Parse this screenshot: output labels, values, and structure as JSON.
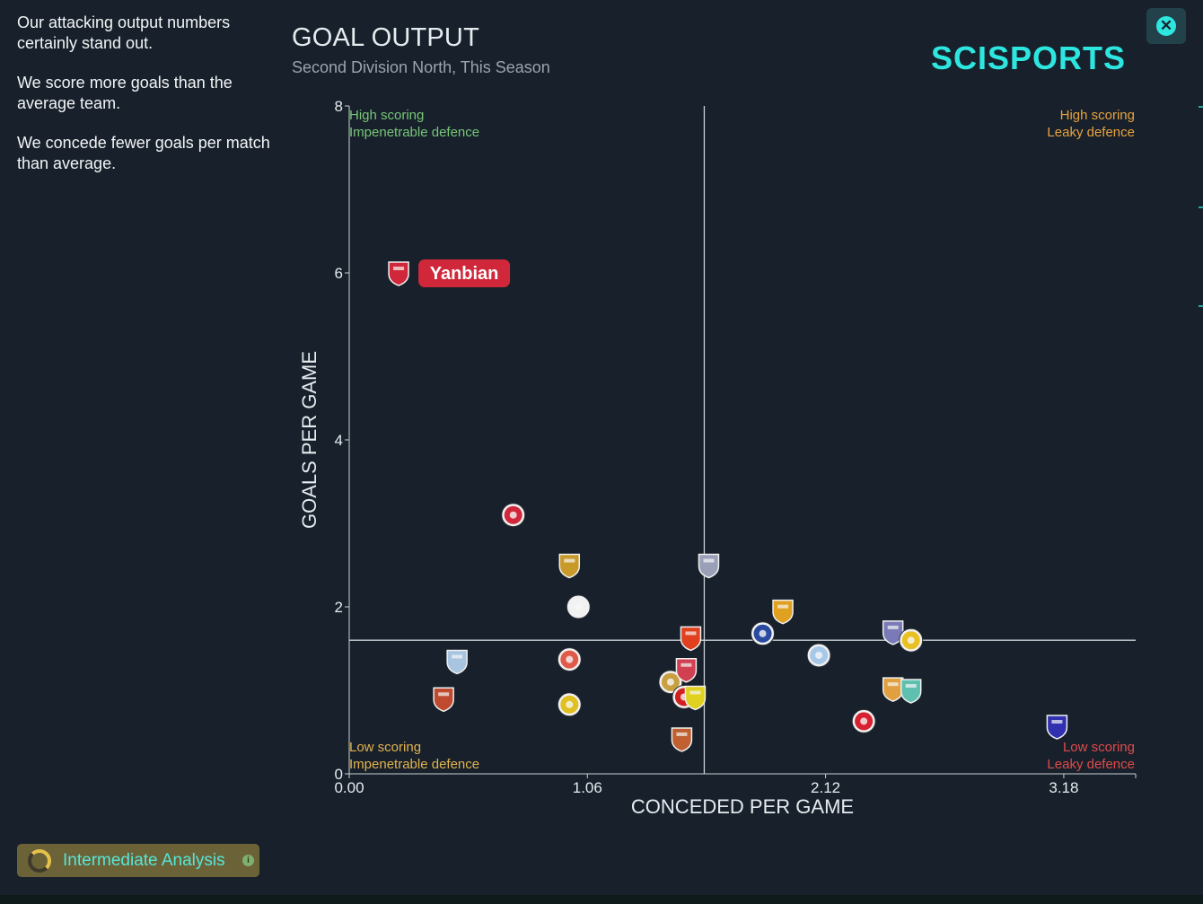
{
  "sidebar": {
    "paragraphs": [
      "Our attacking output numbers certainly stand out.",
      "We score more goals than the average team.",
      "We concede fewer goals per match than average."
    ]
  },
  "header": {
    "title": "GOAL OUTPUT",
    "subtitle": "Second Division North, This Season",
    "logo_text": "SCISPORTS",
    "close_icon": "close-icon"
  },
  "footer": {
    "analysis_label": "Intermediate Analysis",
    "analysis_icon": "progress-ring-icon",
    "info_icon": "info-icon"
  },
  "colors": {
    "background": "#18212b",
    "accent": "#2ee6e0",
    "quadrant_top_left": "#78c678",
    "quadrant_top_right": "#e8a23e",
    "quadrant_bottom_left": "#e2b24e",
    "quadrant_bottom_right": "#e04a4a",
    "highlight": "#d0283a"
  },
  "chart_data": {
    "type": "scatter",
    "xlabel": "CONCEDED PER GAME",
    "ylabel": "GOALS PER GAME",
    "xlim": [
      0,
      3.5
    ],
    "ylim": [
      0,
      8
    ],
    "x_ticks": [
      "0.00",
      "1.06",
      "2.12",
      "3.18"
    ],
    "y_ticks": [
      "0",
      "2",
      "4",
      "6",
      "8"
    ],
    "average": {
      "x": 1.58,
      "y": 1.6
    },
    "quadrants": {
      "top_left": [
        "High scoring",
        "Impenetrable defence"
      ],
      "top_right": [
        "High scoring",
        "Leaky defence"
      ],
      "bottom_left": [
        "Low scoring",
        "Impenetrable defence"
      ],
      "bottom_right": [
        "Low scoring",
        "Leaky defence"
      ]
    },
    "highlight_label": "Yanbian",
    "points": [
      {
        "x": 0.22,
        "y": 6.0,
        "color": "#d0283a",
        "shape": "shield",
        "highlight": true
      },
      {
        "x": 0.73,
        "y": 3.1,
        "color": "#d0283a",
        "shape": "circle"
      },
      {
        "x": 0.98,
        "y": 2.5,
        "color": "#c89a2a",
        "shape": "shield"
      },
      {
        "x": 1.02,
        "y": 2.0,
        "color": "#f2f2f2",
        "shape": "circle"
      },
      {
        "x": 1.6,
        "y": 2.5,
        "color": "#9aa0b8",
        "shape": "shield"
      },
      {
        "x": 1.93,
        "y": 1.95,
        "color": "#e0a020",
        "shape": "shield"
      },
      {
        "x": 0.48,
        "y": 1.35,
        "color": "#a8c4e0",
        "shape": "shield"
      },
      {
        "x": 0.98,
        "y": 1.37,
        "color": "#e05a4a",
        "shape": "circle"
      },
      {
        "x": 0.98,
        "y": 0.83,
        "color": "#e0c020",
        "shape": "circle"
      },
      {
        "x": 0.42,
        "y": 0.9,
        "color": "#c04a30",
        "shape": "shield"
      },
      {
        "x": 1.52,
        "y": 1.63,
        "color": "#e04020",
        "shape": "shield"
      },
      {
        "x": 1.84,
        "y": 1.68,
        "color": "#2a4aa0",
        "shape": "circle"
      },
      {
        "x": 2.09,
        "y": 1.42,
        "color": "#a8c8e8",
        "shape": "circle"
      },
      {
        "x": 2.42,
        "y": 1.7,
        "color": "#7a7ab8",
        "shape": "shield"
      },
      {
        "x": 2.5,
        "y": 1.6,
        "color": "#e8c020",
        "shape": "circle"
      },
      {
        "x": 1.43,
        "y": 1.1,
        "color": "#c8a040",
        "shape": "circle"
      },
      {
        "x": 1.5,
        "y": 1.25,
        "color": "#d04050",
        "shape": "shield"
      },
      {
        "x": 1.49,
        "y": 0.92,
        "color": "#d02020",
        "shape": "circle"
      },
      {
        "x": 1.54,
        "y": 0.92,
        "color": "#e0d020",
        "shape": "shield"
      },
      {
        "x": 1.48,
        "y": 0.42,
        "color": "#c06030",
        "shape": "shield"
      },
      {
        "x": 2.42,
        "y": 1.02,
        "color": "#e0a040",
        "shape": "shield"
      },
      {
        "x": 2.5,
        "y": 1.0,
        "color": "#60c0b0",
        "shape": "shield"
      },
      {
        "x": 2.29,
        "y": 0.63,
        "color": "#d82030",
        "shape": "circle"
      },
      {
        "x": 3.15,
        "y": 0.57,
        "color": "#3030b0",
        "shape": "shield"
      }
    ]
  }
}
